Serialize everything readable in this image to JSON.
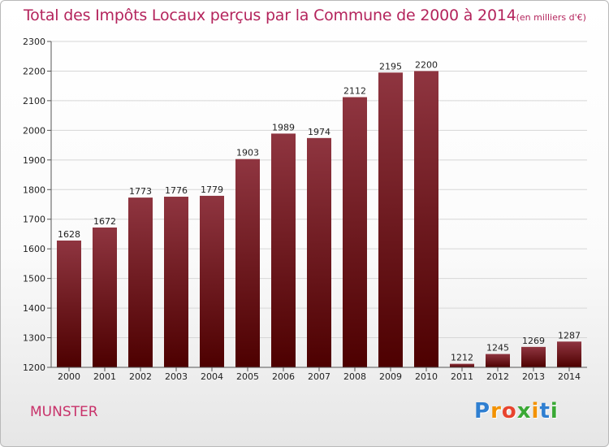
{
  "chart_data": {
    "type": "bar",
    "title": "Total des Impôts Locaux perçus par la Commune de 2000 à 2014",
    "unit_note": "(en milliers d'€)",
    "categories": [
      "2000",
      "2001",
      "2002",
      "2003",
      "2004",
      "2005",
      "2006",
      "2007",
      "2008",
      "2009",
      "2010",
      "2011",
      "2012",
      "2013",
      "2014"
    ],
    "values": [
      1628,
      1672,
      1773,
      1776,
      1779,
      1903,
      1989,
      1974,
      2112,
      2195,
      2200,
      1212,
      1245,
      1269,
      1287
    ],
    "ylim": [
      1200,
      2300
    ],
    "yticks": [
      1200,
      1300,
      1400,
      1500,
      1600,
      1700,
      1800,
      1900,
      2000,
      2100,
      2200,
      2300
    ],
    "xlabel": "",
    "ylabel": "",
    "grid": true,
    "bar_color_top": "#8f3540",
    "bar_color_bottom": "#4d0000"
  },
  "commune": "MUNSTER",
  "logo": {
    "letters": [
      "P",
      "r",
      "o",
      "x",
      "i",
      "t",
      "i"
    ],
    "colors": [
      "#2f7fd1",
      "#f39200",
      "#e8442e",
      "#3aa935",
      "#f39200",
      "#2f7fd1",
      "#3aa935"
    ]
  }
}
